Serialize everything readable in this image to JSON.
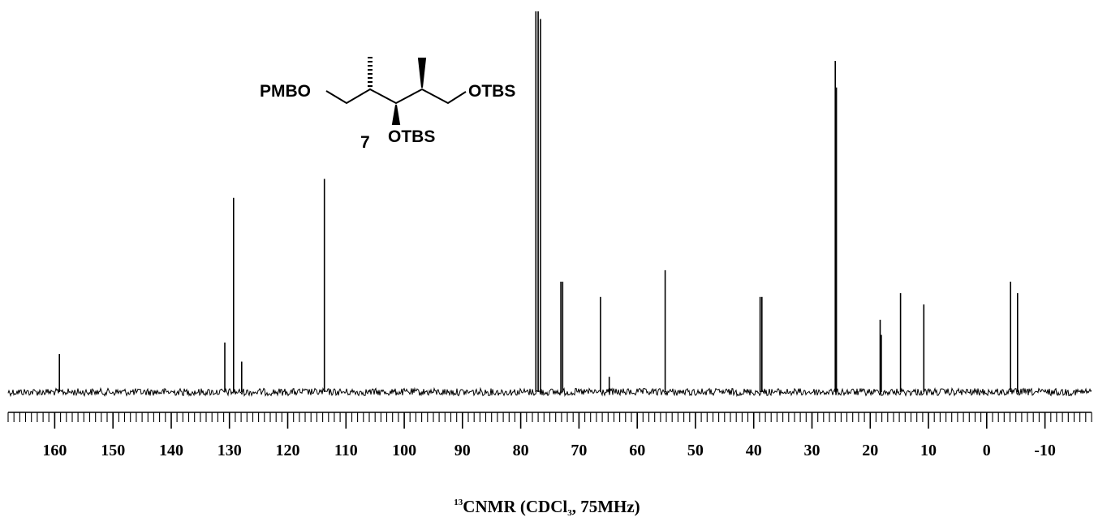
{
  "chart_data": {
    "type": "line",
    "title": "",
    "xlabel": "",
    "ylabel": "",
    "xlim": [
      168,
      -18
    ],
    "x_reversed": true,
    "x_ticks": [
      160,
      150,
      140,
      130,
      120,
      110,
      100,
      90,
      80,
      70,
      60,
      50,
      40,
      30,
      20,
      10,
      0,
      -10
    ],
    "tick_labels": [
      "160",
      "150",
      "140",
      "130",
      "120",
      "110",
      "100",
      "90",
      "80",
      "70",
      "60",
      "50",
      "40",
      "30",
      "20",
      "10",
      "0",
      "-10"
    ],
    "grid": false,
    "series": [
      {
        "peaks": [
          {
            "ppm": 159.2,
            "intensity": 0.1
          },
          {
            "ppm": 130.8,
            "intensity": 0.13
          },
          {
            "ppm": 129.3,
            "intensity": 0.51
          },
          {
            "ppm": 127.9,
            "intensity": 0.08
          },
          {
            "ppm": 113.7,
            "intensity": 0.56
          },
          {
            "ppm": 77.4,
            "intensity": 1.0
          },
          {
            "ppm": 77.0,
            "intensity": 1.0
          },
          {
            "ppm": 76.6,
            "intensity": 0.98
          },
          {
            "ppm": 73.1,
            "intensity": 0.29
          },
          {
            "ppm": 72.8,
            "intensity": 0.29
          },
          {
            "ppm": 66.3,
            "intensity": 0.25
          },
          {
            "ppm": 64.8,
            "intensity": 0.04
          },
          {
            "ppm": 55.2,
            "intensity": 0.32
          },
          {
            "ppm": 38.9,
            "intensity": 0.25
          },
          {
            "ppm": 38.6,
            "intensity": 0.25
          },
          {
            "ppm": 26.0,
            "intensity": 0.87
          },
          {
            "ppm": 25.8,
            "intensity": 0.8
          },
          {
            "ppm": 18.3,
            "intensity": 0.19
          },
          {
            "ppm": 18.1,
            "intensity": 0.15
          },
          {
            "ppm": 14.8,
            "intensity": 0.26
          },
          {
            "ppm": 10.8,
            "intensity": 0.23
          },
          {
            "ppm": -4.1,
            "intensity": 0.29
          },
          {
            "ppm": -5.3,
            "intensity": 0.26
          }
        ]
      }
    ]
  },
  "structure": {
    "compound_number": "7",
    "left_group": "PMBO",
    "right_group": "OTBS",
    "middle_group": "OTBS"
  },
  "caption": {
    "superscript": "13",
    "prefix": "CNMR (CDCl",
    "subscript": "3",
    "suffix": ", 75MHz)"
  }
}
